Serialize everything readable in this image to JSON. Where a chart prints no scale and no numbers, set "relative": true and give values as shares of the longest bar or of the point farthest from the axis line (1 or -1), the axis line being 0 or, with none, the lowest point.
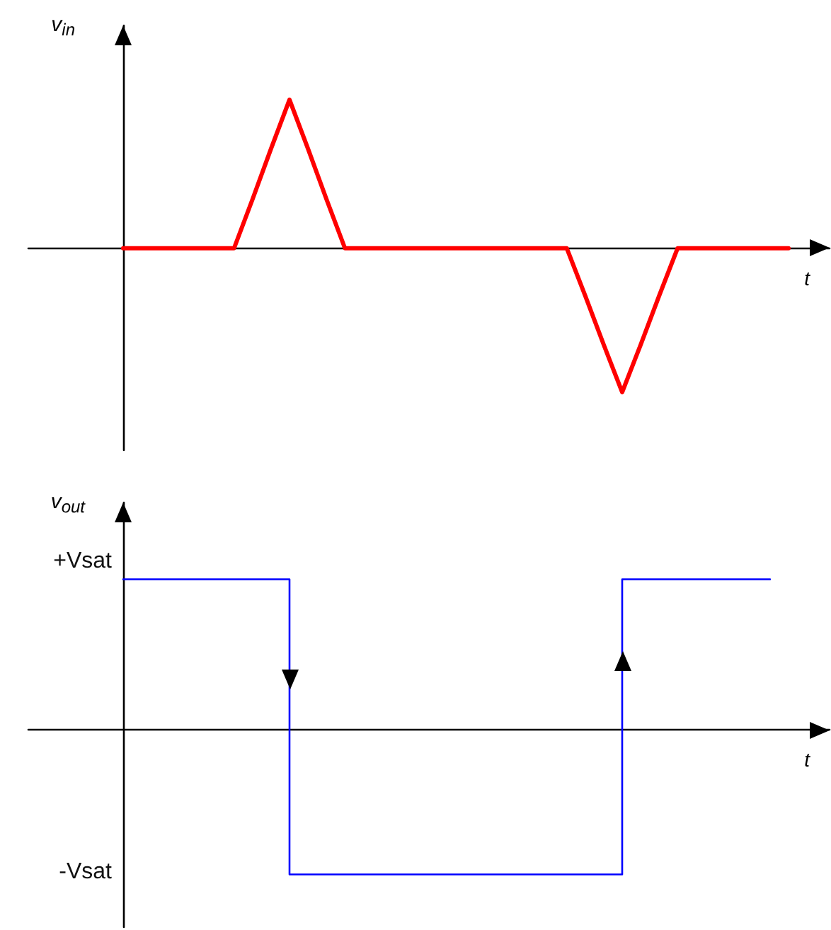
{
  "chart_data": [
    {
      "type": "line",
      "relative": true,
      "xlabel": "t",
      "ylabel": "v$_{in}$",
      "color": "#ff0000",
      "categories": [
        null,
        null,
        null,
        null,
        null,
        null,
        null,
        null,
        null,
        null,
        null,
        null,
        null,
        null,
        null,
        null,
        null,
        null,
        null,
        null,
        null,
        null,
        null,
        null,
        null,
        null,
        null,
        null,
        null,
        null,
        null,
        null,
        null,
        null,
        null,
        null,
        null
      ],
      "values": [
        0,
        0,
        0,
        0,
        0,
        0,
        0,
        0.33,
        0.67,
        1,
        0.67,
        0.33,
        0,
        0,
        0,
        0,
        0,
        0,
        0,
        0,
        0,
        0,
        0,
        0,
        0,
        -0.32,
        -0.65,
        -0.97,
        -0.65,
        -0.32,
        0,
        0,
        0,
        0,
        0,
        0,
        0
      ]
    },
    {
      "type": "step",
      "relative": true,
      "xlabel": "t",
      "ylabel": "v$_{out}$",
      "color": "#0000ff",
      "annotations": [
        "+Vsat",
        "-Vsat"
      ],
      "categories": [
        null,
        null,
        null,
        null,
        null,
        null,
        null,
        null,
        null,
        null,
        null,
        null,
        null,
        null,
        null,
        null,
        null,
        null,
        null,
        null,
        null,
        null,
        null,
        null,
        null,
        null,
        null,
        null,
        null,
        null,
        null,
        null,
        null,
        null,
        null,
        null
      ],
      "values": [
        1,
        1,
        1,
        1,
        1,
        1,
        1,
        1,
        1,
        -0.96,
        -0.96,
        -0.96,
        -0.96,
        -0.96,
        -0.96,
        -0.96,
        -0.96,
        -0.96,
        -0.96,
        -0.96,
        -0.96,
        -0.96,
        -0.96,
        -0.96,
        -0.96,
        -0.96,
        -0.96,
        1,
        1,
        1,
        1,
        1,
        1,
        1,
        1,
        1
      ]
    }
  ]
}
